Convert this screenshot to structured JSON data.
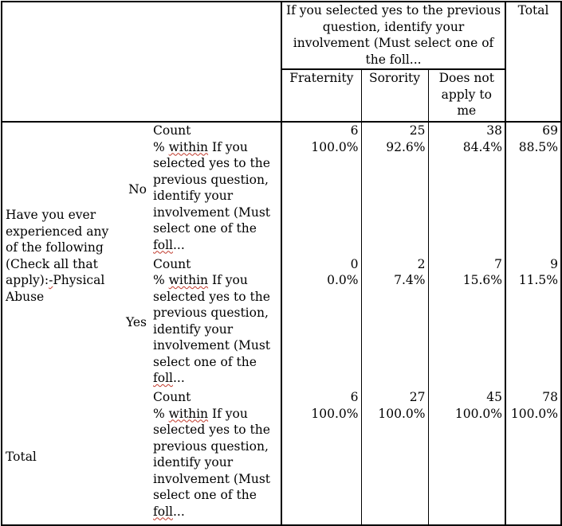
{
  "header": {
    "spanning_title": "If you selected yes to the previous question, identify your involvement (Must select one of the foll...",
    "total": "Total",
    "columns": [
      "Fraternity",
      "Sorority",
      "Does not apply to me"
    ]
  },
  "row_variable": {
    "label_part1": "Have you ever experienced any of the following (Check all that apply):",
    "label_squiggle": "-",
    "label_part2": "Physical Abuse"
  },
  "stat_labels": {
    "count": "Count",
    "pct_prefix": "% ",
    "pct_within": "within",
    "pct_rest": " If you selected yes to the previous question, identify your involvement (Must select one of the ",
    "pct_end": "foll",
    "pct_ellipsis": "..."
  },
  "rows": [
    {
      "label": "No",
      "count": [
        "6",
        "25",
        "38",
        "69"
      ],
      "pct": [
        "100.0%",
        "92.6%",
        "84.4%",
        "88.5%"
      ]
    },
    {
      "label": "Yes",
      "count": [
        "0",
        "2",
        "7",
        "9"
      ],
      "pct": [
        "0.0%",
        "7.4%",
        "15.6%",
        "11.5%"
      ]
    }
  ],
  "total_row": {
    "label": "Total",
    "count": [
      "6",
      "27",
      "45",
      "78"
    ],
    "pct": [
      "100.0%",
      "100.0%",
      "100.0%",
      "100.0%"
    ]
  }
}
